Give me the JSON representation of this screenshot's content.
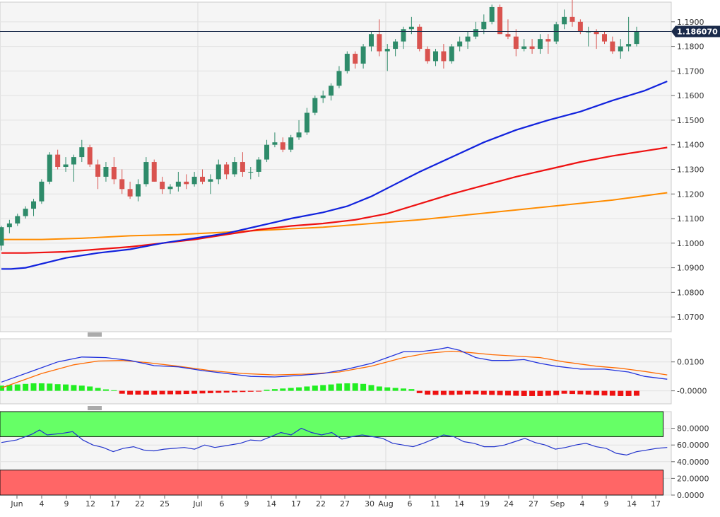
{
  "chart_data": [
    {
      "type": "candlestick",
      "panel": "price",
      "current_price": 1.18607,
      "current_price_label": "1.186070",
      "y_ticks": [
        "1.1900",
        "1.1800",
        "1.1700",
        "1.1600",
        "1.1500",
        "1.1400",
        "1.1300",
        "1.1200",
        "1.1100",
        "1.1000",
        "1.0900",
        "1.0800",
        "1.0700"
      ],
      "ylim": [
        1.064,
        1.198
      ],
      "x_labels": [
        "Jun",
        "4",
        "9",
        "12",
        "17",
        "22",
        "25",
        "Jul",
        "6",
        "9",
        "14",
        "17",
        "22",
        "27",
        "30",
        "Aug",
        "6",
        "11",
        "14",
        "19",
        "24",
        "27",
        "Sep",
        "4",
        "9",
        "14",
        "17"
      ],
      "candles": [
        [
          1.099,
          1.107,
          1.097,
          1.1065
        ],
        [
          1.1065,
          1.1095,
          1.104,
          1.108
        ],
        [
          1.108,
          1.112,
          1.107,
          1.111
        ],
        [
          1.111,
          1.115,
          1.11,
          1.114
        ],
        [
          1.114,
          1.118,
          1.111,
          1.117
        ],
        [
          1.117,
          1.126,
          1.116,
          1.125
        ],
        [
          1.125,
          1.137,
          1.124,
          1.136
        ],
        [
          1.136,
          1.138,
          1.13,
          1.131
        ],
        [
          1.131,
          1.135,
          1.129,
          1.132
        ],
        [
          1.132,
          1.136,
          1.125,
          1.135
        ],
        [
          1.135,
          1.142,
          1.133,
          1.139
        ],
        [
          1.139,
          1.14,
          1.131,
          1.132
        ],
        [
          1.132,
          1.134,
          1.122,
          1.127
        ],
        [
          1.127,
          1.133,
          1.125,
          1.131
        ],
        [
          1.131,
          1.135,
          1.124,
          1.126
        ],
        [
          1.126,
          1.13,
          1.12,
          1.122
        ],
        [
          1.122,
          1.125,
          1.118,
          1.119
        ],
        [
          1.119,
          1.126,
          1.117,
          1.124
        ],
        [
          1.124,
          1.135,
          1.123,
          1.133
        ],
        [
          1.133,
          1.134,
          1.125,
          1.125
        ],
        [
          1.125,
          1.127,
          1.12,
          1.122
        ],
        [
          1.122,
          1.124,
          1.12,
          1.123
        ],
        [
          1.123,
          1.129,
          1.121,
          1.125
        ],
        [
          1.125,
          1.128,
          1.122,
          1.124
        ],
        [
          1.124,
          1.129,
          1.123,
          1.127
        ],
        [
          1.127,
          1.13,
          1.124,
          1.125
        ],
        [
          1.125,
          1.128,
          1.12,
          1.126
        ],
        [
          1.126,
          1.134,
          1.124,
          1.132
        ],
        [
          1.132,
          1.133,
          1.126,
          1.128
        ],
        [
          1.128,
          1.135,
          1.127,
          1.133
        ],
        [
          1.133,
          1.137,
          1.127,
          1.129
        ],
        [
          1.129,
          1.131,
          1.126,
          1.129
        ],
        [
          1.129,
          1.135,
          1.127,
          1.134
        ],
        [
          1.134,
          1.142,
          1.133,
          1.14
        ],
        [
          1.14,
          1.145,
          1.139,
          1.141
        ],
        [
          1.141,
          1.143,
          1.137,
          1.138
        ],
        [
          1.138,
          1.144,
          1.137,
          1.143
        ],
        [
          1.143,
          1.15,
          1.142,
          1.145
        ],
        [
          1.145,
          1.155,
          1.144,
          1.153
        ],
        [
          1.153,
          1.16,
          1.152,
          1.159
        ],
        [
          1.159,
          1.162,
          1.157,
          1.16
        ],
        [
          1.16,
          1.165,
          1.158,
          1.164
        ],
        [
          1.164,
          1.172,
          1.163,
          1.17
        ],
        [
          1.17,
          1.178,
          1.169,
          1.177
        ],
        [
          1.177,
          1.178,
          1.171,
          1.173
        ],
        [
          1.173,
          1.181,
          1.171,
          1.18
        ],
        [
          1.18,
          1.186,
          1.178,
          1.185
        ],
        [
          1.185,
          1.191,
          1.176,
          1.178
        ],
        [
          1.178,
          1.181,
          1.17,
          1.179
        ],
        [
          1.179,
          1.183,
          1.176,
          1.182
        ],
        [
          1.182,
          1.188,
          1.179,
          1.187
        ],
        [
          1.187,
          1.192,
          1.185,
          1.188
        ],
        [
          1.188,
          1.189,
          1.178,
          1.179
        ],
        [
          1.179,
          1.18,
          1.173,
          1.174
        ],
        [
          1.174,
          1.179,
          1.172,
          1.178
        ],
        [
          1.178,
          1.181,
          1.171,
          1.174
        ],
        [
          1.174,
          1.181,
          1.173,
          1.18
        ],
        [
          1.18,
          1.184,
          1.178,
          1.182
        ],
        [
          1.182,
          1.186,
          1.179,
          1.184
        ],
        [
          1.184,
          1.19,
          1.183,
          1.187
        ],
        [
          1.187,
          1.193,
          1.185,
          1.19
        ],
        [
          1.19,
          1.197,
          1.189,
          1.196
        ],
        [
          1.196,
          1.197,
          1.185,
          1.185
        ],
        [
          1.185,
          1.191,
          1.183,
          1.184
        ],
        [
          1.184,
          1.187,
          1.176,
          1.179
        ],
        [
          1.179,
          1.183,
          1.178,
          1.18
        ],
        [
          1.18,
          1.183,
          1.177,
          1.179
        ],
        [
          1.179,
          1.185,
          1.177,
          1.183
        ],
        [
          1.183,
          1.185,
          1.177,
          1.182
        ],
        [
          1.182,
          1.19,
          1.181,
          1.189
        ],
        [
          1.189,
          1.195,
          1.187,
          1.192
        ],
        [
          1.192,
          1.199,
          1.188,
          1.19
        ],
        [
          1.19,
          1.191,
          1.185,
          1.186
        ],
        [
          1.186,
          1.188,
          1.18,
          1.186
        ],
        [
          1.186,
          1.187,
          1.179,
          1.185
        ],
        [
          1.185,
          1.186,
          1.181,
          1.182
        ],
        [
          1.182,
          1.184,
          1.177,
          1.178
        ],
        [
          1.178,
          1.183,
          1.175,
          1.18
        ],
        [
          1.18,
          1.192,
          1.178,
          1.181
        ],
        [
          1.181,
          1.188,
          1.18,
          1.1861
        ]
      ],
      "sma50": [
        [
          0,
          1.0895
        ],
        [
          1.2,
          1.0895
        ],
        [
          3,
          1.09
        ],
        [
          8,
          1.094
        ],
        [
          12,
          1.096
        ],
        [
          16,
          1.0975
        ],
        [
          20,
          1.1
        ],
        [
          24,
          1.102
        ],
        [
          28,
          1.104
        ],
        [
          32,
          1.107
        ],
        [
          36,
          1.11
        ],
        [
          40,
          1.1125
        ],
        [
          43,
          1.115
        ],
        [
          46,
          1.119
        ],
        [
          49,
          1.124
        ],
        [
          52,
          1.129
        ],
        [
          56,
          1.135
        ],
        [
          60,
          1.141
        ],
        [
          64,
          1.146
        ],
        [
          68,
          1.15
        ],
        [
          72,
          1.1535
        ],
        [
          76,
          1.158
        ],
        [
          80,
          1.162
        ],
        [
          82.8,
          1.1658
        ]
      ],
      "sma100": [
        [
          0,
          1.096
        ],
        [
          3,
          1.096
        ],
        [
          8,
          1.0965
        ],
        [
          12,
          1.0975
        ],
        [
          16,
          1.0985
        ],
        [
          20,
          1.1
        ],
        [
          24,
          1.1015
        ],
        [
          28,
          1.1035
        ],
        [
          32,
          1.1055
        ],
        [
          36,
          1.107
        ],
        [
          40,
          1.108
        ],
        [
          44,
          1.1095
        ],
        [
          48,
          1.112
        ],
        [
          52,
          1.116
        ],
        [
          56,
          1.12
        ],
        [
          60,
          1.1235
        ],
        [
          64,
          1.127
        ],
        [
          68,
          1.13
        ],
        [
          72,
          1.133
        ],
        [
          76,
          1.1355
        ],
        [
          80,
          1.1375
        ],
        [
          82.8,
          1.1389
        ]
      ],
      "sma200": [
        [
          0,
          1.1015
        ],
        [
          5,
          1.1015
        ],
        [
          10,
          1.102
        ],
        [
          16,
          1.103
        ],
        [
          22,
          1.1035
        ],
        [
          28,
          1.1045
        ],
        [
          34,
          1.1055
        ],
        [
          40,
          1.1065
        ],
        [
          46,
          1.108
        ],
        [
          52,
          1.1095
        ],
        [
          58,
          1.1115
        ],
        [
          64,
          1.1135
        ],
        [
          70,
          1.1155
        ],
        [
          76,
          1.1175
        ],
        [
          82.8,
          1.1205
        ]
      ]
    },
    {
      "type": "macd",
      "panel": "macd",
      "y_ticks": [
        "0.0100",
        "-0.0000"
      ],
      "ylim": [
        -0.0045,
        0.018
      ],
      "macd": [
        [
          0,
          0.003
        ],
        [
          4,
          0.007
        ],
        [
          7,
          0.01
        ],
        [
          10,
          0.0117
        ],
        [
          13,
          0.0115
        ],
        [
          16,
          0.0105
        ],
        [
          19,
          0.0087
        ],
        [
          22,
          0.0083
        ],
        [
          25,
          0.007
        ],
        [
          28,
          0.006
        ],
        [
          31,
          0.005
        ],
        [
          34,
          0.0048
        ],
        [
          37,
          0.0053
        ],
        [
          40,
          0.006
        ],
        [
          43,
          0.0075
        ],
        [
          46,
          0.0095
        ],
        [
          48,
          0.0115
        ],
        [
          50,
          0.0135
        ],
        [
          52,
          0.0135
        ],
        [
          54,
          0.0142
        ],
        [
          55.5,
          0.015
        ],
        [
          57,
          0.014
        ],
        [
          59,
          0.0115
        ],
        [
          61,
          0.0105
        ],
        [
          63,
          0.0105
        ],
        [
          65,
          0.0108
        ],
        [
          67,
          0.0095
        ],
        [
          69,
          0.0085
        ],
        [
          72,
          0.0075
        ],
        [
          75,
          0.0075
        ],
        [
          78,
          0.0065
        ],
        [
          80,
          0.005
        ],
        [
          82.8,
          0.004
        ]
      ],
      "signal": [
        [
          0,
          0.001
        ],
        [
          5,
          0.006
        ],
        [
          9,
          0.009
        ],
        [
          12,
          0.0103
        ],
        [
          15,
          0.0105
        ],
        [
          18,
          0.0098
        ],
        [
          22,
          0.0085
        ],
        [
          26,
          0.007
        ],
        [
          30,
          0.006
        ],
        [
          34,
          0.0055
        ],
        [
          38,
          0.0058
        ],
        [
          42,
          0.0065
        ],
        [
          46,
          0.0085
        ],
        [
          50,
          0.0115
        ],
        [
          53,
          0.013
        ],
        [
          56,
          0.0137
        ],
        [
          58,
          0.0133
        ],
        [
          61,
          0.0125
        ],
        [
          64,
          0.012
        ],
        [
          67,
          0.0115
        ],
        [
          70,
          0.01
        ],
        [
          74,
          0.0085
        ],
        [
          77,
          0.0078
        ],
        [
          80,
          0.0067
        ],
        [
          82.8,
          0.0055
        ]
      ],
      "histogram": [
        0.0018,
        0.002,
        0.0022,
        0.0024,
        0.0026,
        0.0026,
        0.0025,
        0.0023,
        0.0022,
        0.002,
        0.0018,
        0.0015,
        0.001,
        0.0005,
        0.0002,
        -0.001,
        -0.0013,
        -0.0013,
        -0.0013,
        -0.0013,
        -0.0012,
        -0.0012,
        -0.0012,
        -0.0011,
        -0.001,
        -0.0009,
        -0.0008,
        -0.0007,
        -0.0006,
        -0.0005,
        -0.0004,
        -0.0003,
        -0.0002,
        0.0004,
        0.0006,
        0.0008,
        0.001,
        0.0012,
        0.0015,
        0.0018,
        0.002,
        0.0022,
        0.0025,
        0.0026,
        0.0026,
        0.0024,
        0.002,
        0.0015,
        0.0012,
        0.001,
        0.0008,
        0.0006,
        -0.0008,
        -0.0013,
        -0.0014,
        -0.0014,
        -0.0014,
        -0.0013,
        -0.0012,
        -0.0012,
        -0.0013,
        -0.0014,
        -0.0015,
        -0.0016,
        -0.0017,
        -0.0018,
        -0.0018,
        -0.0018,
        -0.0017,
        -0.0015,
        -0.001,
        -0.0011,
        -0.0012,
        -0.0013,
        -0.0015,
        -0.0016,
        -0.0017,
        -0.0018,
        -0.0018,
        -0.0017
      ]
    },
    {
      "type": "rsi",
      "panel": "rsi",
      "y_ticks": [
        "80.0000",
        "60.0000",
        "40.0000",
        "20.0000",
        "0.0000"
      ],
      "ylim": [
        0,
        100
      ],
      "overbought_zone": [
        70,
        100
      ],
      "oversold_zone": [
        0,
        30
      ],
      "colors": {
        "overbought": "#66ff66",
        "oversold": "#ff6666",
        "line": "#2233cc"
      },
      "rsi": [
        [
          0,
          63
        ],
        [
          3,
          66
        ],
        [
          6,
          73
        ],
        [
          7.5,
          78
        ],
        [
          9,
          72
        ],
        [
          12,
          74
        ],
        [
          14,
          76
        ],
        [
          16,
          66
        ],
        [
          18,
          60
        ],
        [
          20,
          57
        ],
        [
          22,
          52
        ],
        [
          24,
          56
        ],
        [
          26,
          58
        ],
        [
          28,
          54
        ],
        [
          30,
          53
        ],
        [
          32,
          55
        ],
        [
          34,
          56
        ],
        [
          36,
          57
        ],
        [
          38,
          55
        ],
        [
          40,
          60
        ],
        [
          42,
          57
        ],
        [
          44,
          59
        ],
        [
          47,
          62
        ],
        [
          49,
          66
        ],
        [
          51,
          65
        ],
        [
          53,
          70
        ],
        [
          55,
          75
        ],
        [
          57,
          72
        ],
        [
          59,
          80
        ],
        [
          61,
          75
        ],
        [
          63,
          72
        ],
        [
          65,
          75
        ],
        [
          67,
          67
        ],
        [
          69,
          70
        ],
        [
          71,
          72
        ],
        [
          73,
          70
        ],
        [
          75,
          68
        ],
        [
          77,
          62
        ],
        [
          79,
          60
        ],
        [
          81,
          58
        ],
        [
          83,
          62
        ],
        [
          85,
          67
        ],
        [
          87,
          72
        ],
        [
          89,
          70
        ],
        [
          91,
          64
        ],
        [
          93,
          62
        ],
        [
          95,
          58
        ],
        [
          97,
          58
        ],
        [
          99,
          60
        ],
        [
          101,
          64
        ],
        [
          103,
          68
        ],
        [
          105,
          63
        ],
        [
          107,
          60
        ],
        [
          109,
          55
        ],
        [
          111,
          57
        ],
        [
          113,
          60
        ],
        [
          115,
          62
        ],
        [
          117,
          58
        ],
        [
          119,
          56
        ],
        [
          121,
          50
        ],
        [
          123,
          48
        ],
        [
          125,
          52
        ],
        [
          127,
          54
        ],
        [
          129,
          56
        ],
        [
          131,
          57
        ]
      ]
    }
  ],
  "x_axis": {
    "labels": [
      "Jun",
      "4",
      "9",
      "12",
      "17",
      "22",
      "25",
      "Jul",
      "6",
      "9",
      "14",
      "17",
      "22",
      "27",
      "30",
      "Aug",
      "6",
      "11",
      "14",
      "19",
      "24",
      "27",
      "Sep",
      "4",
      "9",
      "14",
      "17"
    ]
  }
}
